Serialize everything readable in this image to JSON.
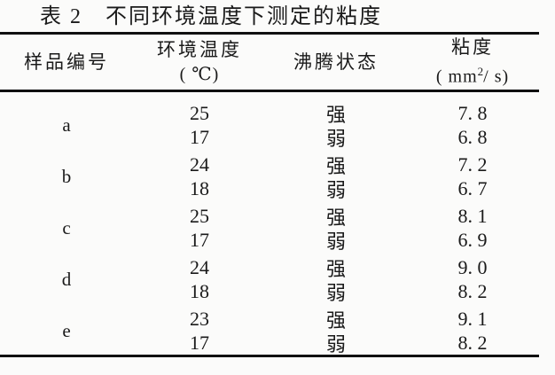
{
  "page": {
    "background": "#fbfbfa",
    "text_color": "#1a1a1a",
    "rule_color": "#101010"
  },
  "title": "表 2　不同环境温度下测定的粘度",
  "table": {
    "headers": {
      "sample": "样品编号",
      "temperature_line1": "环境温度",
      "temperature_line2": "( ℃)",
      "boiling": "沸腾状态",
      "viscosity_line1": "粘度",
      "viscosity_unit_prefix": "( mm",
      "viscosity_unit_sup": "2",
      "viscosity_unit_suffix": "/ s)"
    },
    "groups": [
      {
        "sample": "a",
        "rows": [
          {
            "temp": "25",
            "boiling": "强",
            "viscosity": "7. 8"
          },
          {
            "temp": "17",
            "boiling": "弱",
            "viscosity": "6. 8"
          }
        ]
      },
      {
        "sample": "b",
        "rows": [
          {
            "temp": "24",
            "boiling": "强",
            "viscosity": "7. 2"
          },
          {
            "temp": "18",
            "boiling": "弱",
            "viscosity": "6. 7"
          }
        ]
      },
      {
        "sample": "c",
        "rows": [
          {
            "temp": "25",
            "boiling": "强",
            "viscosity": "8. 1"
          },
          {
            "temp": "17",
            "boiling": "弱",
            "viscosity": "6. 9"
          }
        ]
      },
      {
        "sample": "d",
        "rows": [
          {
            "temp": "24",
            "boiling": "强",
            "viscosity": "9. 0"
          },
          {
            "temp": "18",
            "boiling": "弱",
            "viscosity": "8. 2"
          }
        ]
      },
      {
        "sample": "e",
        "rows": [
          {
            "temp": "23",
            "boiling": "强",
            "viscosity": "9. 1"
          },
          {
            "temp": "17",
            "boiling": "弱",
            "viscosity": "8. 2"
          }
        ]
      }
    ]
  }
}
